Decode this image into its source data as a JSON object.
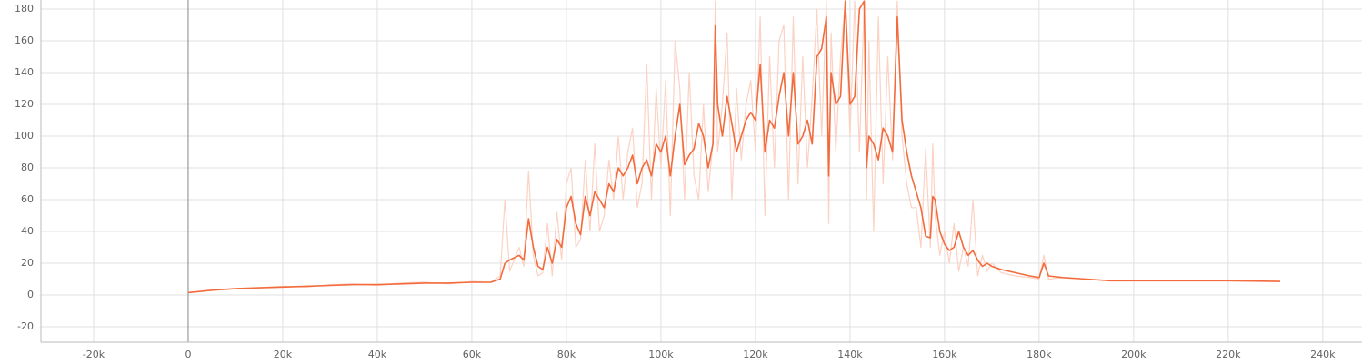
{
  "chart_data": {
    "type": "line",
    "x": [
      0,
      5000,
      10000,
      15000,
      20000,
      25000,
      30000,
      35000,
      40000,
      45000,
      50000,
      55000,
      60000,
      64000,
      66000,
      67000,
      68000,
      70000,
      71000,
      72000,
      73000,
      74000,
      75000,
      76000,
      77000,
      78000,
      79000,
      80000,
      81000,
      82000,
      83000,
      84000,
      85000,
      86000,
      87000,
      88000,
      89000,
      90000,
      91000,
      92000,
      93000,
      94000,
      95000,
      96000,
      97000,
      98000,
      99000,
      100000,
      101000,
      102000,
      103000,
      104000,
      105000,
      106000,
      107000,
      108000,
      109000,
      110000,
      111000,
      111500,
      112000,
      113000,
      114000,
      115000,
      116000,
      117000,
      118000,
      119000,
      120000,
      121000,
      122000,
      123000,
      124000,
      125000,
      126000,
      127000,
      128000,
      129000,
      130000,
      131000,
      132000,
      133000,
      134000,
      135000,
      135500,
      136000,
      137000,
      138000,
      139000,
      140000,
      141000,
      142000,
      143000,
      143500,
      144000,
      145000,
      146000,
      147000,
      148000,
      149000,
      150000,
      151000,
      152000,
      153000,
      154000,
      155000,
      156000,
      157000,
      157500,
      158000,
      159000,
      160000,
      161000,
      162000,
      163000,
      164000,
      165000,
      166000,
      167000,
      168000,
      169000,
      170000,
      172000,
      175000,
      178000,
      180000,
      181000,
      182000,
      185000,
      190000,
      195000,
      200000,
      210000,
      220000,
      231000
    ],
    "series": [
      {
        "color": "#fbd2c3",
        "values": [
          1.5,
          3,
          4,
          4.5,
          5.5,
          5,
          6.5,
          7,
          6,
          7.5,
          8,
          7,
          8.5,
          8,
          12,
          60,
          15,
          30,
          18,
          78,
          25,
          12,
          14,
          45,
          12,
          52,
          22,
          70,
          80,
          30,
          35,
          85,
          40,
          95,
          40,
          50,
          85,
          60,
          100,
          60,
          90,
          105,
          55,
          70,
          145,
          60,
          130,
          80,
          135,
          50,
          160,
          130,
          60,
          140,
          75,
          60,
          120,
          65,
          95,
          185,
          90,
          120,
          165,
          60,
          130,
          85,
          120,
          135,
          90,
          175,
          50,
          150,
          80,
          160,
          170,
          60,
          175,
          70,
          150,
          80,
          125,
          180,
          100,
          185,
          45,
          165,
          90,
          150,
          185,
          100,
          185,
          90,
          185,
          60,
          160,
          40,
          175,
          70,
          150,
          85,
          185,
          100,
          70,
          55,
          55,
          30,
          92,
          30,
          95,
          50,
          25,
          40,
          20,
          45,
          15,
          30,
          18,
          60,
          12,
          25,
          15,
          20,
          14,
          12,
          11,
          10,
          25,
          10,
          11,
          10,
          9,
          9,
          9,
          9,
          8.5
        ]
      },
      {
        "color": "#f36b3c",
        "values": [
          1.5,
          3,
          4,
          4.5,
          5,
          5.5,
          6,
          6.5,
          6.5,
          7,
          7.5,
          7.5,
          8,
          8,
          10,
          20,
          22,
          25,
          22,
          48,
          30,
          18,
          16,
          30,
          20,
          35,
          30,
          55,
          62,
          45,
          38,
          62,
          50,
          65,
          60,
          55,
          70,
          65,
          80,
          75,
          80,
          88,
          70,
          80,
          85,
          75,
          95,
          90,
          100,
          75,
          100,
          120,
          82,
          88,
          92,
          108,
          100,
          80,
          95,
          170,
          120,
          100,
          125,
          108,
          90,
          100,
          110,
          115,
          110,
          145,
          90,
          110,
          105,
          125,
          140,
          100,
          140,
          95,
          100,
          110,
          95,
          150,
          155,
          175,
          75,
          140,
          120,
          125,
          185,
          120,
          125,
          180,
          185,
          80,
          100,
          95,
          85,
          105,
          100,
          90,
          175,
          110,
          90,
          75,
          65,
          55,
          37,
          36,
          62,
          60,
          40,
          32,
          28,
          30,
          40,
          30,
          25,
          28,
          22,
          18,
          20,
          18,
          16,
          14,
          12,
          11,
          20,
          12,
          11,
          10,
          9,
          9,
          9,
          9,
          8.5
        ]
      }
    ],
    "xlim": [
      -31150,
      248300
    ],
    "ylim": [
      -29.7,
      185.7
    ],
    "xticks": [
      {
        "value": -20000,
        "label": "-20k"
      },
      0,
      {
        "value": 20000,
        "label": "20k"
      },
      {
        "value": 40000,
        "label": "40k"
      },
      {
        "value": 60000,
        "label": "60k"
      },
      {
        "value": 80000,
        "label": "80k"
      },
      {
        "value": 100000,
        "label": "100k"
      },
      {
        "value": 120000,
        "label": "120k"
      },
      {
        "value": 140000,
        "label": "140k"
      },
      {
        "value": 160000,
        "label": "160k"
      },
      {
        "value": 180000,
        "label": "180k"
      },
      {
        "value": 200000,
        "label": "200k"
      },
      {
        "value": 220000,
        "label": "220k"
      },
      {
        "value": 240000,
        "label": "240k"
      }
    ],
    "yticks": [
      -20,
      0,
      20,
      40,
      60,
      80,
      100,
      120,
      140,
      160,
      180
    ],
    "grid": true
  }
}
